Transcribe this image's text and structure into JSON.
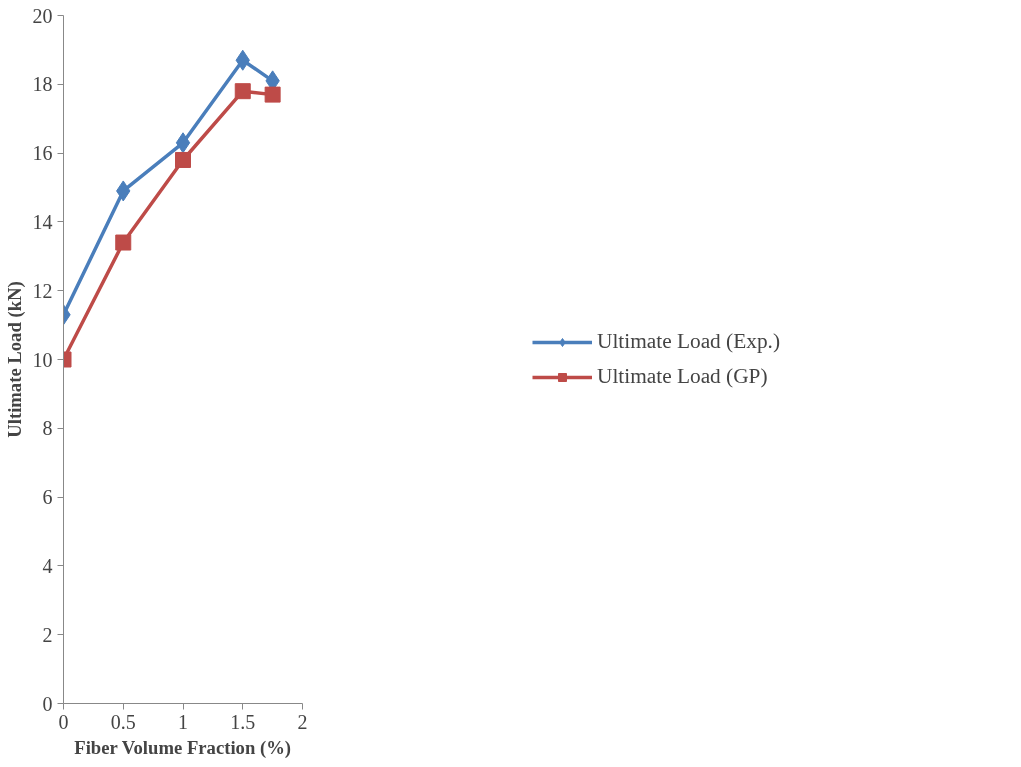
{
  "chart_data": {
    "type": "line",
    "xlabel": "Fiber Volume Fraction (%)",
    "ylabel": "Ultimate Load (kN)",
    "x": [
      0,
      0.5,
      1,
      1.5,
      1.75
    ],
    "series": [
      {
        "name": "Ultimate Load (Exp.)",
        "color": "#4a7ebb",
        "marker": "diamond",
        "values": [
          11.3,
          14.9,
          16.3,
          18.7,
          18.1
        ]
      },
      {
        "name": "Ultimate Load (GP)",
        "color": "#be4b48",
        "marker": "square",
        "values": [
          10.0,
          13.4,
          15.8,
          17.8,
          17.7
        ]
      }
    ],
    "xlim": [
      0,
      2
    ],
    "xticks": [
      0,
      0.5,
      1,
      1.5,
      2
    ],
    "ylim": [
      0,
      20
    ],
    "yticks": [
      0,
      2,
      4,
      6,
      8,
      10,
      12,
      14,
      16,
      18,
      20
    ],
    "grid": false,
    "legend": "right",
    "line_style": "solid"
  }
}
